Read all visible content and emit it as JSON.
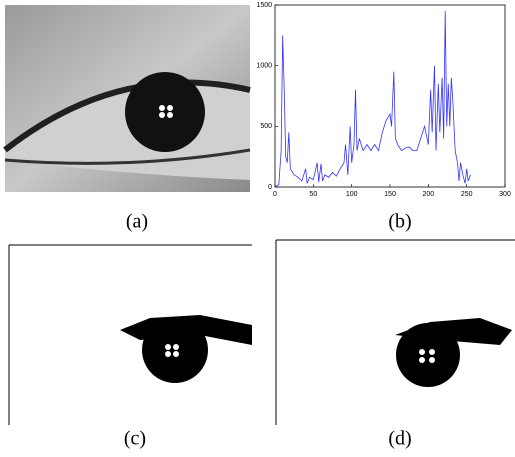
{
  "panels": [
    {
      "label": "(a)"
    },
    {
      "label": "(b)"
    },
    {
      "label": "(c)"
    },
    {
      "label": "(d)"
    }
  ],
  "chart_data": {
    "type": "line",
    "color": "#3333ff",
    "x": [
      0,
      5,
      8,
      10,
      12,
      14,
      16,
      18,
      20,
      25,
      30,
      35,
      40,
      42,
      45,
      50,
      55,
      57,
      60,
      62,
      65,
      70,
      75,
      80,
      85,
      90,
      92,
      95,
      98,
      100,
      103,
      105,
      107,
      110,
      115,
      120,
      125,
      130,
      135,
      140,
      145,
      150,
      152,
      155,
      157,
      160,
      165,
      170,
      175,
      180,
      185,
      190,
      195,
      200,
      203,
      205,
      208,
      210,
      213,
      215,
      218,
      220,
      222,
      224,
      226,
      228,
      230,
      232,
      235,
      238,
      240,
      242,
      245,
      248,
      250,
      252,
      255
    ],
    "values": [
      0,
      20,
      300,
      1250,
      800,
      250,
      200,
      450,
      150,
      100,
      80,
      50,
      150,
      30,
      80,
      60,
      200,
      40,
      190,
      50,
      100,
      80,
      120,
      90,
      150,
      200,
      350,
      100,
      500,
      200,
      350,
      800,
      300,
      400,
      300,
      350,
      300,
      350,
      300,
      450,
      550,
      600,
      500,
      950,
      400,
      350,
      300,
      320,
      330,
      300,
      300,
      400,
      500,
      350,
      800,
      450,
      1000,
      300,
      850,
      450,
      900,
      400,
      1450,
      500,
      850,
      500,
      900,
      700,
      300,
      200,
      50,
      200,
      100,
      30,
      150,
      50,
      100
    ],
    "xlim": [
      0,
      300
    ],
    "xticks": [
      0,
      50,
      100,
      150,
      200,
      250,
      300
    ],
    "ylim": [
      0,
      1500
    ],
    "yticks": [
      0,
      500,
      1000,
      1500
    ]
  }
}
